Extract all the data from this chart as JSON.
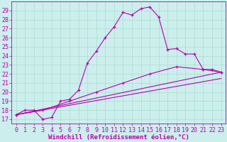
{
  "background_color": "#cceeed",
  "grid_color": "#aaddcc",
  "line_color": "#bb00aa",
  "xlim": [
    -0.5,
    23.5
  ],
  "ylim": [
    16.5,
    30.0
  ],
  "yticks": [
    17,
    18,
    19,
    20,
    21,
    22,
    23,
    24,
    25,
    26,
    27,
    28,
    29
  ],
  "xticks": [
    0,
    1,
    2,
    3,
    4,
    5,
    6,
    7,
    8,
    9,
    10,
    11,
    12,
    13,
    14,
    15,
    16,
    17,
    18,
    19,
    20,
    21,
    22,
    23
  ],
  "xlabel": "Windchill (Refroidissement éolien,°C)",
  "curve1_x": [
    0,
    1,
    2,
    3,
    4,
    5,
    6,
    7,
    8,
    9,
    10,
    11,
    12,
    13,
    14,
    15,
    16,
    17,
    18,
    19,
    20,
    21,
    22,
    23
  ],
  "curve1_y": [
    17.5,
    18.0,
    18.0,
    17.0,
    17.2,
    19.0,
    19.2,
    20.2,
    23.2,
    24.5,
    26.0,
    27.2,
    28.8,
    28.5,
    29.2,
    29.4,
    28.3,
    24.7,
    24.8,
    24.2,
    24.2,
    22.5,
    22.5,
    22.2
  ],
  "line2_x": [
    0,
    23
  ],
  "line2_y": [
    17.5,
    22.2
  ],
  "line3_x": [
    0,
    23
  ],
  "line3_y": [
    17.5,
    21.5
  ],
  "curve4_x": [
    0,
    3,
    6,
    9,
    12,
    15,
    18,
    21,
    23
  ],
  "curve4_y": [
    17.5,
    18.0,
    19.0,
    20.0,
    21.0,
    22.0,
    22.8,
    22.5,
    22.2
  ],
  "font_size": 6.5,
  "xlabel_fontsize": 6.5,
  "tick_fontsize": 6.0
}
